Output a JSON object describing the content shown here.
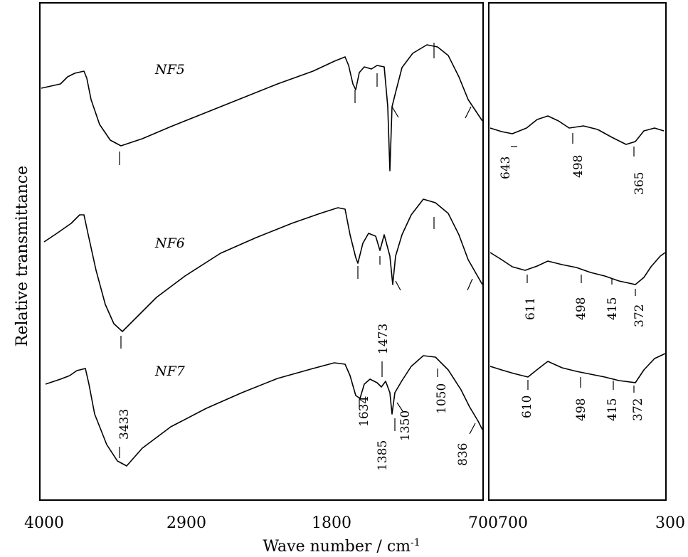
{
  "chart_data": {
    "type": "line",
    "title": "",
    "xlabel": "Wave number / cm",
    "xlabel_superscript": "-1",
    "ylabel": "Relative transmittance",
    "panels": [
      {
        "name": "left",
        "xlim": [
          4000,
          700
        ],
        "ticks": [
          "4000",
          "2900",
          "1800",
          "700"
        ]
      },
      {
        "name": "right",
        "xlim": [
          700,
          300
        ],
        "ticks": [
          "700",
          "300"
        ]
      }
    ],
    "series": [
      {
        "name": "NF5",
        "peaks": [
          {
            "x": 3433,
            "label": ""
          },
          {
            "x": 1634,
            "label": ""
          },
          {
            "x": 1473,
            "label": ""
          },
          {
            "x": 1385,
            "label": ""
          },
          {
            "x": 1350,
            "label": ""
          },
          {
            "x": 1050,
            "label": ""
          },
          {
            "x": 836,
            "label": ""
          },
          {
            "x": 643,
            "label": "643"
          },
          {
            "x": 498,
            "label": "498"
          },
          {
            "x": 365,
            "label": "365"
          }
        ]
      },
      {
        "name": "NF6",
        "peaks": [
          {
            "x": 3433,
            "label": ""
          },
          {
            "x": 1634,
            "label": ""
          },
          {
            "x": 1473,
            "label": "1473"
          },
          {
            "x": 1385,
            "label": ""
          },
          {
            "x": 1350,
            "label": ""
          },
          {
            "x": 1050,
            "label": ""
          },
          {
            "x": 836,
            "label": ""
          },
          {
            "x": 611,
            "label": "611"
          },
          {
            "x": 498,
            "label": "498"
          },
          {
            "x": 415,
            "label": "415"
          },
          {
            "x": 372,
            "label": "372"
          }
        ]
      },
      {
        "name": "NF7",
        "peaks": [
          {
            "x": 3433,
            "label": "3433"
          },
          {
            "x": 1634,
            "label": "1634"
          },
          {
            "x": 1473,
            "label": ""
          },
          {
            "x": 1385,
            "label": "1385"
          },
          {
            "x": 1350,
            "label": "1350"
          },
          {
            "x": 1050,
            "label": "1050"
          },
          {
            "x": 836,
            "label": "836"
          },
          {
            "x": 610,
            "label": "610"
          },
          {
            "x": 498,
            "label": "498"
          },
          {
            "x": 415,
            "label": "415"
          },
          {
            "x": 372,
            "label": "372"
          }
        ]
      }
    ],
    "grid": false,
    "legend": "none"
  }
}
